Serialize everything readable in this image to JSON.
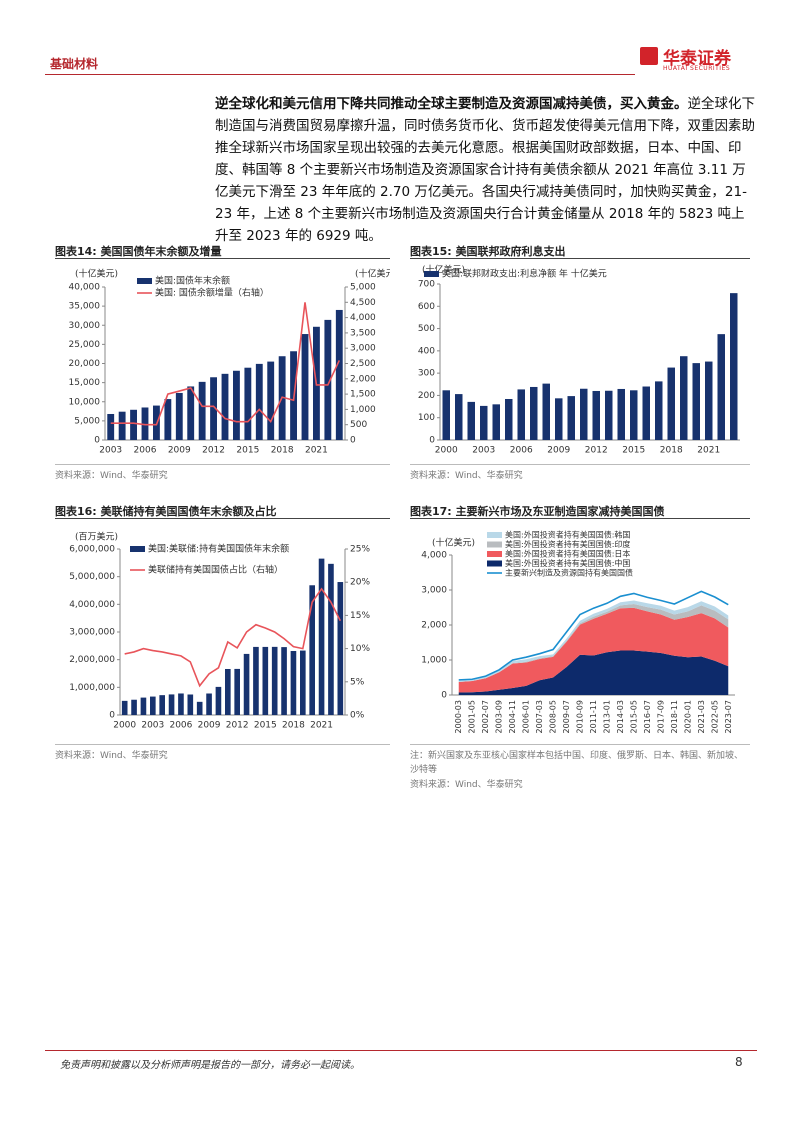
{
  "header": {
    "section": "基础材料",
    "logo_cn": "华泰证券",
    "logo_en": "HUATAI SECURITIES"
  },
  "paragraph": {
    "lead": "逆全球化和美元信用下降共同推动全球主要制造及资源国减持美债，买入黄金。",
    "body": "逆全球化下制造国与消费国贸易摩擦升温，同时债务货币化、货币超发使得美元信用下降，双重因素助推全球新兴市场国家呈现出较强的去美元化意愿。根据美国财政部数据，日本、中国、印度、韩国等 8 个主要新兴市场制造及资源国家合计持有美债余额从 2021 年高位 3.11 万亿美元下滑至 23 年年底的 2.70 万亿美元。各国央行减持美债同时，加快购买黄金，21-23 年，上述 8 个主要新兴市场制造及资源国央行合计黄金储量从 2018 年的 5823 吨上升至 2023 年的 6929 吨。"
  },
  "chart_data": [
    {
      "type": "bar",
      "label": "图表14:",
      "title": "美国国债年末余额及增量",
      "y_unit": "(十亿美元)",
      "y2_unit": "(十亿美元)",
      "categories": [
        "2003",
        null,
        null,
        "2006",
        null,
        null,
        "2009",
        null,
        null,
        "2012",
        null,
        null,
        "2015",
        null,
        null,
        "2018",
        null,
        null,
        "2021",
        null,
        null
      ],
      "series": [
        {
          "name": "美国:国债年末余额",
          "type": "bar",
          "color": "#17326e",
          "values": [
            6800,
            7400,
            7900,
            8500,
            9000,
            10700,
            12300,
            14000,
            15200,
            16400,
            17300,
            18100,
            18900,
            19900,
            20500,
            21900,
            23200,
            27700,
            29600,
            31400,
            34000
          ]
        },
        {
          "name": "美国: 国债余额增量（右轴）",
          "type": "line",
          "axis": "y2",
          "color": "#e8545a",
          "values": [
            550,
            550,
            550,
            500,
            500,
            1500,
            1600,
            1700,
            1100,
            1100,
            700,
            600,
            600,
            1000,
            600,
            1400,
            1300,
            4500,
            1800,
            1800,
            2600
          ]
        }
      ],
      "ylim": [
        0,
        40000
      ],
      "yticks": [
        0,
        {
          "value": 5000,
          "label": "5,000"
        },
        {
          "value": 10000,
          "label": "10,000"
        },
        {
          "value": 15000,
          "label": "15,000"
        },
        {
          "value": 20000,
          "label": "20,000"
        },
        {
          "value": 25000,
          "label": "25,000"
        },
        {
          "value": 30000,
          "label": "30,000"
        },
        {
          "value": 35000,
          "label": "35,000"
        },
        {
          "value": 40000,
          "label": "40,000"
        }
      ],
      "y2lim": [
        0,
        5000
      ],
      "y2ticks": [
        0,
        500,
        {
          "value": 1000,
          "label": "1,000"
        },
        {
          "value": 1500,
          "label": "1,500"
        },
        {
          "value": 2000,
          "label": "2,000"
        },
        {
          "value": 2500,
          "label": "2,500"
        },
        {
          "value": 3000,
          "label": "3,000"
        },
        {
          "value": 3500,
          "label": "3,500"
        },
        {
          "value": 4000,
          "label": "4,000"
        },
        {
          "value": 4500,
          "label": "4,500"
        },
        {
          "value": 5000,
          "label": "5,000"
        }
      ],
      "grid": false,
      "source": "资料来源：Wind、华泰研究"
    },
    {
      "type": "bar",
      "label": "图表15:",
      "title": "美国联邦政府利息支出",
      "y_unit": "(十亿美元)",
      "categories": [
        "2000",
        null,
        null,
        "2003",
        null,
        null,
        "2006",
        null,
        null,
        "2009",
        null,
        null,
        "2012",
        null,
        null,
        "2015",
        null,
        null,
        "2018",
        null,
        null,
        "2021",
        null,
        null
      ],
      "series": [
        {
          "name": "美国:联邦财政支出:利息净额 年 十亿美元",
          "type": "bar",
          "color": "#17326e",
          "values": [
            223,
            206,
            171,
            153,
            160,
            184,
            227,
            238,
            253,
            187,
            197,
            230,
            220,
            221,
            229,
            223,
            240,
            263,
            325,
            376,
            345,
            352,
            475,
            659
          ]
        }
      ],
      "ylim": [
        0,
        700
      ],
      "yticks": [
        0,
        100,
        200,
        300,
        400,
        500,
        600,
        700
      ],
      "grid": false,
      "source": "资料来源：Wind、华泰研究"
    },
    {
      "type": "bar",
      "label": "图表16:",
      "title": "美联储持有美国国债年末余额及占比",
      "y_unit": "(百万美元)",
      "categories": [
        "2000",
        null,
        null,
        "2003",
        null,
        null,
        "2006",
        null,
        null,
        "2009",
        null,
        null,
        "2012",
        null,
        null,
        "2015",
        null,
        null,
        "2018",
        null,
        null,
        "2021",
        null,
        null
      ],
      "series": [
        {
          "name": "美国:美联储:持有美国国债年末余额",
          "type": "bar",
          "color": "#17326e",
          "values": [
            511000,
            552000,
            629000,
            666000,
            717000,
            744000,
            778000,
            741000,
            476000,
            777000,
            1016000,
            1663000,
            1666000,
            2208000,
            2461000,
            2461000,
            2463000,
            2454000,
            2313000,
            2329000,
            4689000,
            5652000,
            5464000,
            4806000
          ]
        },
        {
          "name": "美联储持有美国国债占比（右轴）",
          "type": "line",
          "axis": "y2",
          "color": "#e8545a",
          "values": [
            9.2,
            9.5,
            10.0,
            9.7,
            9.5,
            9.2,
            8.9,
            8.0,
            4.4,
            6.2,
            7.1,
            11.0,
            10.1,
            12.5,
            13.6,
            13.1,
            12.5,
            11.5,
            10.3,
            10.0,
            17.0,
            19.0,
            17.0,
            14.2
          ]
        }
      ],
      "ylim": [
        0,
        6000000
      ],
      "yticks": [
        0,
        {
          "value": 1000000,
          "label": "1,000,000"
        },
        {
          "value": 2000000,
          "label": "2,000,000"
        },
        {
          "value": 3000000,
          "label": "3,000,000"
        },
        {
          "value": 4000000,
          "label": "4,000,000"
        },
        {
          "value": 5000000,
          "label": "5,000,000"
        },
        {
          "value": 6000000,
          "label": "6,000,000"
        }
      ],
      "y2lim": [
        0,
        25
      ],
      "y2ticks": [
        {
          "value": 0,
          "label": "0%"
        },
        {
          "value": 5,
          "label": "5%"
        },
        {
          "value": 10,
          "label": "10%"
        },
        {
          "value": 15,
          "label": "15%"
        },
        {
          "value": 20,
          "label": "20%"
        },
        {
          "value": 25,
          "label": "25%"
        }
      ],
      "grid": false,
      "source": "资料来源：Wind、华泰研究"
    },
    {
      "type": "area",
      "stacked": true,
      "label": "图表17:",
      "title": "主要新兴市场及东亚制造国家减持美国国债",
      "y_unit": "(十亿美元)",
      "categories": [
        "2000-03",
        "2001-05",
        "2002-07",
        "2003-09",
        "2004-11",
        "2006-01",
        "2007-03",
        "2008-05",
        "2009-07",
        "2010-09",
        "2011-11",
        "2013-01",
        "2014-03",
        "2015-05",
        "2016-07",
        "2017-09",
        "2018-11",
        "2020-01",
        "2021-03",
        "2022-05",
        "2023-07"
      ],
      "series": [
        {
          "name": "美国:外国投资者持有美国国债:韩国",
          "type": "area",
          "color": "#b9d8e8",
          "values": [
            30,
            30,
            40,
            50,
            60,
            70,
            60,
            50,
            60,
            70,
            80,
            80,
            90,
            100,
            110,
            110,
            110,
            120,
            120,
            120,
            110
          ]
        },
        {
          "name": "美国:外国投资者持有美国国债:印度",
          "type": "area",
          "color": "#b9bcbf",
          "values": [
            0,
            0,
            0,
            0,
            10,
            20,
            20,
            20,
            30,
            40,
            60,
            60,
            80,
            110,
            120,
            140,
            150,
            160,
            220,
            220,
            230
          ]
        },
        {
          "name": "美国:外国投资者持有美国国债:日本",
          "type": "area",
          "color": "#f05a5e",
          "values": [
            300,
            320,
            380,
            500,
            700,
            670,
            610,
            590,
            720,
            860,
            1050,
            1100,
            1210,
            1220,
            1150,
            1100,
            1030,
            1150,
            1240,
            1210,
            1110
          ]
        },
        {
          "name": "美国:外国投资者持有美国国债:中国",
          "type": "area",
          "color": "#0d2a6b",
          "values": [
            70,
            80,
            100,
            150,
            200,
            260,
            420,
            500,
            800,
            1150,
            1130,
            1220,
            1270,
            1270,
            1240,
            1200,
            1120,
            1080,
            1100,
            980,
            820
          ]
        },
        {
          "name": "主要新兴制造及资源国持有美国国债",
          "type": "line",
          "color": "#1a8fd0",
          "values": [
            430,
            450,
            540,
            720,
            1000,
            1080,
            1180,
            1300,
            1800,
            2300,
            2480,
            2620,
            2820,
            2900,
            2790,
            2700,
            2600,
            2780,
            2960,
            2800,
            2580
          ]
        }
      ],
      "ylim": [
        0,
        4000
      ],
      "yticks": [
        0,
        {
          "value": 1000,
          "label": "1,000"
        },
        {
          "value": 2000,
          "label": "2,000"
        },
        {
          "value": 3000,
          "label": "3,000"
        },
        {
          "value": 4000,
          "label": "4,000"
        }
      ],
      "grid": false,
      "note": "注：新兴国家及东亚核心国家样本包括中国、印度、俄罗斯、日本、韩国、新加坡、沙特等",
      "source": "资料来源：Wind、华泰研究"
    }
  ],
  "footer": {
    "disclaimer": "免责声明和披露以及分析师声明是报告的一部分，请务必一起阅读。",
    "page": "8"
  }
}
